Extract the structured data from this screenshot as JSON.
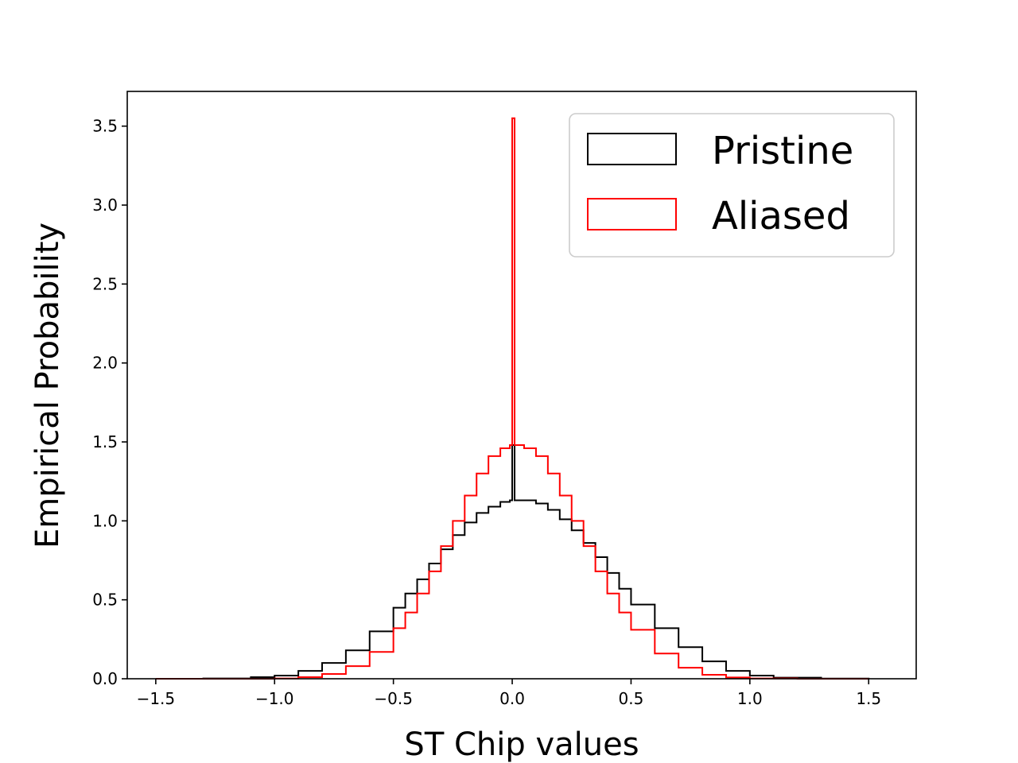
{
  "chart_data": {
    "type": "histogram-step",
    "title": "",
    "xlabel": "ST Chip values",
    "ylabel": "Empirical Probability",
    "xlim": [
      -1.62,
      1.7
    ],
    "ylim": [
      0,
      3.72
    ],
    "xticks": [
      -1.5,
      -1.0,
      -0.5,
      0.0,
      0.5,
      1.0,
      1.5
    ],
    "xtick_labels": [
      "−1.5",
      "−1.0",
      "−0.5",
      "0.0",
      "0.5",
      "1.0",
      "1.5"
    ],
    "yticks": [
      0.0,
      0.5,
      1.0,
      1.5,
      2.0,
      2.5,
      3.0,
      3.5
    ],
    "ytick_labels": [
      "0.0",
      "0.5",
      "1.0",
      "1.5",
      "2.0",
      "2.5",
      "3.0",
      "3.5"
    ],
    "legend_position": "top-right",
    "series": [
      {
        "name": "Pristine",
        "color": "#000000",
        "x": [
          -1.5,
          -1.3,
          -1.1,
          -1.0,
          -0.9,
          -0.8,
          -0.7,
          -0.6,
          -0.5,
          -0.45,
          -0.4,
          -0.35,
          -0.3,
          -0.25,
          -0.2,
          -0.15,
          -0.1,
          -0.05,
          -0.01,
          0.0,
          0.01,
          0.05,
          0.1,
          0.15,
          0.2,
          0.25,
          0.3,
          0.35,
          0.4,
          0.45,
          0.5,
          0.6,
          0.7,
          0.8,
          0.9,
          1.0,
          1.1,
          1.3,
          1.5
        ],
        "y": [
          0.0,
          0.002,
          0.01,
          0.02,
          0.05,
          0.1,
          0.18,
          0.3,
          0.45,
          0.54,
          0.63,
          0.73,
          0.82,
          0.91,
          0.99,
          1.05,
          1.09,
          1.12,
          1.13,
          1.48,
          1.13,
          1.13,
          1.11,
          1.07,
          1.01,
          0.94,
          0.86,
          0.77,
          0.67,
          0.57,
          0.47,
          0.32,
          0.2,
          0.11,
          0.05,
          0.02,
          0.007,
          0.001,
          0.0
        ]
      },
      {
        "name": "Aliased",
        "color": "#ff0000",
        "x": [
          -1.5,
          -1.2,
          -1.0,
          -0.9,
          -0.8,
          -0.7,
          -0.6,
          -0.5,
          -0.45,
          -0.4,
          -0.35,
          -0.3,
          -0.25,
          -0.2,
          -0.15,
          -0.1,
          -0.05,
          -0.01,
          0.0,
          0.01,
          0.05,
          0.1,
          0.15,
          0.2,
          0.25,
          0.3,
          0.35,
          0.4,
          0.45,
          0.5,
          0.6,
          0.7,
          0.8,
          0.9,
          1.0,
          1.2,
          1.5
        ],
        "y": [
          0.0,
          0.0,
          0.002,
          0.01,
          0.03,
          0.08,
          0.17,
          0.32,
          0.42,
          0.54,
          0.68,
          0.84,
          1.0,
          1.16,
          1.3,
          1.41,
          1.46,
          1.48,
          3.55,
          1.48,
          1.46,
          1.41,
          1.3,
          1.16,
          1.0,
          0.84,
          0.68,
          0.54,
          0.42,
          0.31,
          0.16,
          0.07,
          0.025,
          0.008,
          0.002,
          0.0,
          0.0
        ]
      }
    ]
  }
}
